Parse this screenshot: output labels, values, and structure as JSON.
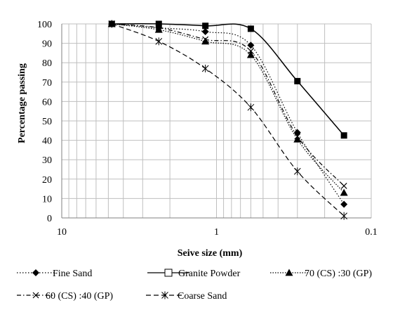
{
  "chart_data": {
    "type": "line",
    "title": "",
    "xlabel": "Seive size (mm)",
    "ylabel": "Percentage passing",
    "x_scale": "log",
    "x_reversed": true,
    "xlim": [
      10,
      0.1
    ],
    "ylim": [
      0,
      100
    ],
    "x_tick_labels": [
      "10",
      "1",
      "0.1"
    ],
    "y_ticks": [
      0,
      10,
      20,
      30,
      40,
      50,
      60,
      70,
      80,
      90,
      100
    ],
    "grid": "on (log minor verticals, horizontal every 10)",
    "legend_position": "bottom",
    "x": [
      4.75,
      2.36,
      1.18,
      0.6,
      0.3,
      0.15
    ],
    "series": [
      {
        "name": "Fine Sand",
        "marker": "diamond",
        "dash": "1.5 2.5",
        "color": "#000000",
        "values": [
          100,
          98,
          96,
          89,
          44,
          7
        ]
      },
      {
        "name": "Granite Powder",
        "marker": "square",
        "dash": "",
        "color": "#000000",
        "values": [
          100,
          100,
          99,
          97.5,
          70.5,
          42.5
        ]
      },
      {
        "name": "70 (CS) :30 (GP)",
        "marker": "triangle",
        "dash": "1.5 2",
        "color": "#000000",
        "values": [
          100,
          97,
          91,
          84,
          40.5,
          13
        ]
      },
      {
        "name": "60 (CS) :40 (GP)",
        "marker": "x",
        "dash": "6 3 1.5 3",
        "color": "#000000",
        "values": [
          100,
          98,
          92,
          86,
          42,
          16.5
        ]
      },
      {
        "name": "Coarse Sand",
        "marker": "asterisk",
        "dash": "7 4",
        "color": "#000000",
        "values": [
          100,
          91,
          77,
          57,
          24,
          1
        ]
      }
    ]
  }
}
